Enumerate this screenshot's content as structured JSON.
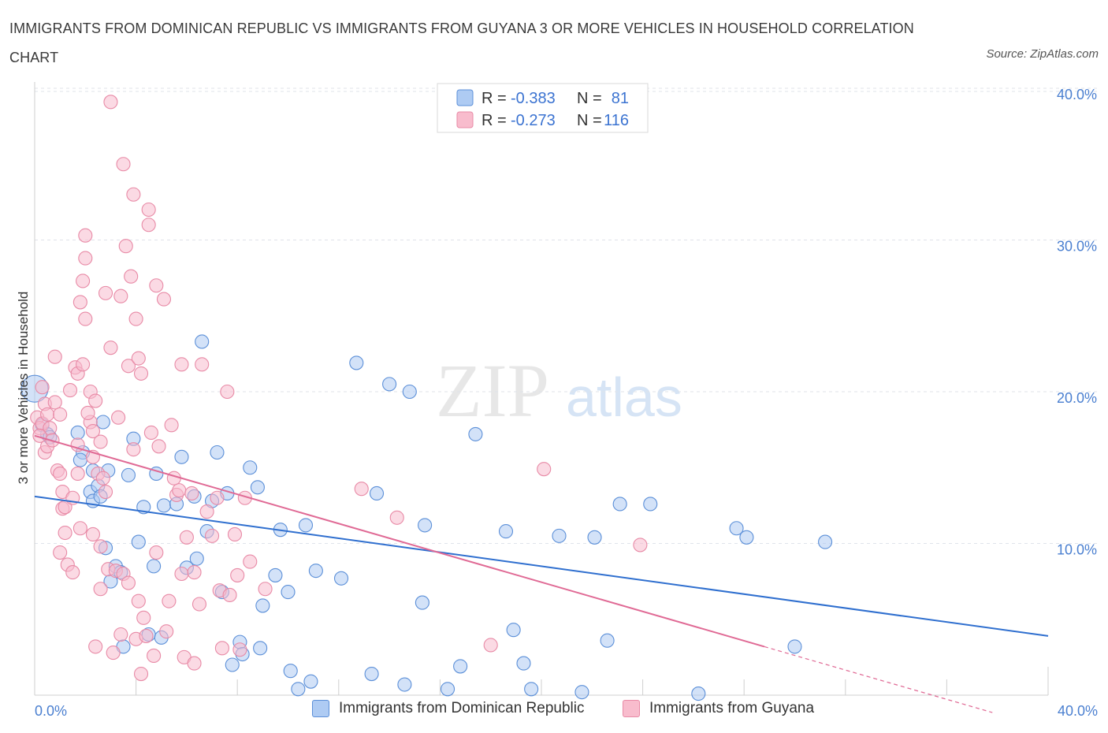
{
  "title": "IMMIGRANTS FROM DOMINICAN REPUBLIC VS IMMIGRANTS FROM GUYANA 3 OR MORE VEHICLES IN HOUSEHOLD CORRELATION CHART",
  "source": "Source: ZipAtlas.com",
  "watermark": {
    "zip": "ZIP",
    "atlas": "atlas"
  },
  "legend": {
    "r_label": "R =",
    "n_label": "N =",
    "rows": [
      {
        "r": "-0.383",
        "n": "81",
        "color": "#aecbf3"
      },
      {
        "r": "-0.273",
        "n": "116",
        "color": "#f8bccd"
      }
    ]
  },
  "colors": {
    "blue_fill": "#aecbf3",
    "blue_stroke": "#5b8fd8",
    "blue_line": "#2f6fcf",
    "pink_fill": "#f8bccd",
    "pink_stroke": "#e88aa6",
    "pink_line": "#e06a95",
    "tick_text": "#4a7fd0",
    "grid": "#dfe3ea"
  },
  "chart_data": {
    "type": "scatter",
    "title": "IMMIGRANTS FROM DOMINICAN REPUBLIC VS IMMIGRANTS FROM GUYANA 3 OR MORE VEHICLES IN HOUSEHOLD CORRELATION CHART",
    "xlabel": "",
    "ylabel": "3 or more Vehicles in Household",
    "xlim": [
      0,
      40
    ],
    "ylim": [
      0,
      40
    ],
    "x_ticks": [
      "0.0%",
      "40.0%"
    ],
    "y_ticks": [
      {
        "value": 10,
        "label": "10.0%"
      },
      {
        "value": 20,
        "label": "20.0%"
      },
      {
        "value": 30,
        "label": "30.0%"
      },
      {
        "value": 40,
        "label": "40.0%"
      }
    ],
    "grid": true,
    "legend_position": "top-center",
    "series": [
      {
        "name": "Immigrants from Dominican Republic",
        "r": -0.383,
        "n": 81,
        "trend": {
          "x": [
            0,
            40
          ],
          "y": [
            13.1,
            3.9
          ]
        },
        "points": [
          [
            0.0,
            20.2
          ],
          [
            0.3,
            17.8
          ],
          [
            0.5,
            17.2
          ],
          [
            0.6,
            17.0
          ],
          [
            1.7,
            17.3
          ],
          [
            1.9,
            16.0
          ],
          [
            1.8,
            15.5
          ],
          [
            2.3,
            14.8
          ],
          [
            2.2,
            13.4
          ],
          [
            2.3,
            12.8
          ],
          [
            2.5,
            13.8
          ],
          [
            2.6,
            13.1
          ],
          [
            2.7,
            18.0
          ],
          [
            2.8,
            9.7
          ],
          [
            2.9,
            14.8
          ],
          [
            3.0,
            7.5
          ],
          [
            3.2,
            8.5
          ],
          [
            3.4,
            8.1
          ],
          [
            3.5,
            3.2
          ],
          [
            3.7,
            14.5
          ],
          [
            3.9,
            16.9
          ],
          [
            4.1,
            10.1
          ],
          [
            4.3,
            12.4
          ],
          [
            4.5,
            4.0
          ],
          [
            4.7,
            8.5
          ],
          [
            4.8,
            14.6
          ],
          [
            5.0,
            3.8
          ],
          [
            5.1,
            12.5
          ],
          [
            5.6,
            12.6
          ],
          [
            5.8,
            15.7
          ],
          [
            6.0,
            8.4
          ],
          [
            6.3,
            13.1
          ],
          [
            6.4,
            9.0
          ],
          [
            6.6,
            23.3
          ],
          [
            6.8,
            10.8
          ],
          [
            7.0,
            12.8
          ],
          [
            7.2,
            16.0
          ],
          [
            7.4,
            6.8
          ],
          [
            7.6,
            13.3
          ],
          [
            7.8,
            2.0
          ],
          [
            8.1,
            3.5
          ],
          [
            8.2,
            2.7
          ],
          [
            8.5,
            15.0
          ],
          [
            8.8,
            13.7
          ],
          [
            8.9,
            3.1
          ],
          [
            9.0,
            5.9
          ],
          [
            9.5,
            7.9
          ],
          [
            9.7,
            10.9
          ],
          [
            10.0,
            6.8
          ],
          [
            10.1,
            1.6
          ],
          [
            10.4,
            0.4
          ],
          [
            10.7,
            11.2
          ],
          [
            10.9,
            0.9
          ],
          [
            11.1,
            8.2
          ],
          [
            12.1,
            7.7
          ],
          [
            12.7,
            21.9
          ],
          [
            13.3,
            1.4
          ],
          [
            13.5,
            13.3
          ],
          [
            14.0,
            20.5
          ],
          [
            14.6,
            0.7
          ],
          [
            14.8,
            20.0
          ],
          [
            15.3,
            6.1
          ],
          [
            15.4,
            11.2
          ],
          [
            16.3,
            0.4
          ],
          [
            16.8,
            1.9
          ],
          [
            17.4,
            17.2
          ],
          [
            18.6,
            10.8
          ],
          [
            18.9,
            4.3
          ],
          [
            19.3,
            2.1
          ],
          [
            19.6,
            0.4
          ],
          [
            20.7,
            10.5
          ],
          [
            21.6,
            0.2
          ],
          [
            22.1,
            10.4
          ],
          [
            22.6,
            3.6
          ],
          [
            23.1,
            12.6
          ],
          [
            24.3,
            12.6
          ],
          [
            26.2,
            0.1
          ],
          [
            27.7,
            11.0
          ],
          [
            28.1,
            10.4
          ],
          [
            30.0,
            3.2
          ],
          [
            31.2,
            10.1
          ]
        ]
      },
      {
        "name": "Immigrants from Guyana",
        "r": -0.273,
        "n": 116,
        "trend": {
          "x": [
            0,
            28.8
          ],
          "y": [
            17.1,
            3.2
          ]
        },
        "points": [
          [
            0.1,
            18.3
          ],
          [
            0.2,
            17.6
          ],
          [
            0.3,
            17.9
          ],
          [
            0.4,
            16.0
          ],
          [
            0.4,
            19.2
          ],
          [
            0.5,
            18.5
          ],
          [
            0.6,
            17.6
          ],
          [
            0.5,
            16.4
          ],
          [
            0.8,
            22.3
          ],
          [
            0.7,
            16.8
          ],
          [
            0.8,
            19.3
          ],
          [
            0.9,
            14.8
          ],
          [
            1.0,
            14.6
          ],
          [
            1.0,
            9.4
          ],
          [
            1.0,
            18.5
          ],
          [
            1.1,
            13.4
          ],
          [
            1.1,
            12.3
          ],
          [
            1.2,
            12.4
          ],
          [
            1.2,
            10.7
          ],
          [
            1.3,
            8.6
          ],
          [
            1.4,
            20.1
          ],
          [
            1.5,
            13.0
          ],
          [
            1.6,
            21.6
          ],
          [
            1.7,
            21.2
          ],
          [
            1.7,
            16.5
          ],
          [
            1.8,
            11.0
          ],
          [
            1.8,
            25.9
          ],
          [
            1.9,
            27.3
          ],
          [
            2.0,
            24.8
          ],
          [
            2.0,
            30.3
          ],
          [
            2.0,
            28.8
          ],
          [
            1.9,
            21.8
          ],
          [
            1.7,
            14.6
          ],
          [
            2.2,
            20.0
          ],
          [
            2.2,
            18.0
          ],
          [
            2.3,
            17.4
          ],
          [
            2.3,
            15.7
          ],
          [
            2.3,
            10.6
          ],
          [
            2.4,
            19.4
          ],
          [
            2.4,
            3.2
          ],
          [
            2.5,
            14.6
          ],
          [
            2.6,
            16.7
          ],
          [
            2.6,
            9.8
          ],
          [
            2.6,
            7.0
          ],
          [
            2.7,
            14.3
          ],
          [
            2.8,
            13.4
          ],
          [
            2.8,
            26.5
          ],
          [
            2.9,
            8.3
          ],
          [
            3.0,
            39.1
          ],
          [
            3.0,
            22.9
          ],
          [
            3.1,
            2.8
          ],
          [
            3.2,
            8.2
          ],
          [
            3.3,
            18.3
          ],
          [
            3.4,
            4.0
          ],
          [
            3.4,
            26.3
          ],
          [
            3.5,
            8.0
          ],
          [
            3.5,
            35.0
          ],
          [
            3.6,
            29.6
          ],
          [
            3.7,
            7.4
          ],
          [
            3.7,
            21.7
          ],
          [
            3.8,
            27.6
          ],
          [
            3.9,
            33.0
          ],
          [
            3.9,
            16.2
          ],
          [
            4.0,
            24.8
          ],
          [
            4.0,
            3.7
          ],
          [
            4.1,
            6.2
          ],
          [
            4.1,
            22.2
          ],
          [
            4.2,
            21.2
          ],
          [
            4.2,
            1.4
          ],
          [
            4.3,
            5.1
          ],
          [
            4.4,
            3.9
          ],
          [
            4.5,
            32.0
          ],
          [
            4.5,
            31.0
          ],
          [
            4.6,
            17.3
          ],
          [
            4.7,
            2.6
          ],
          [
            4.8,
            27.0
          ],
          [
            4.8,
            9.4
          ],
          [
            4.9,
            16.4
          ],
          [
            5.1,
            26.1
          ],
          [
            5.2,
            4.2
          ],
          [
            5.3,
            6.2
          ],
          [
            5.4,
            17.8
          ],
          [
            5.5,
            14.3
          ],
          [
            5.6,
            13.2
          ],
          [
            5.7,
            13.5
          ],
          [
            5.8,
            21.8
          ],
          [
            5.8,
            8.0
          ],
          [
            5.9,
            2.5
          ],
          [
            6.0,
            10.4
          ],
          [
            6.2,
            13.3
          ],
          [
            6.3,
            2.1
          ],
          [
            6.3,
            8.1
          ],
          [
            6.5,
            6.0
          ],
          [
            6.6,
            21.8
          ],
          [
            6.8,
            12.1
          ],
          [
            7.0,
            10.5
          ],
          [
            7.2,
            13.0
          ],
          [
            7.3,
            6.9
          ],
          [
            7.4,
            3.1
          ],
          [
            7.6,
            20.0
          ],
          [
            7.7,
            6.6
          ],
          [
            7.9,
            10.6
          ],
          [
            8.0,
            7.9
          ],
          [
            8.1,
            3.0
          ],
          [
            8.3,
            13.0
          ],
          [
            8.5,
            8.8
          ],
          [
            9.1,
            7.0
          ],
          [
            12.9,
            13.6
          ],
          [
            14.3,
            11.7
          ],
          [
            18.0,
            3.3
          ],
          [
            20.1,
            14.9
          ],
          [
            23.9,
            9.9
          ],
          [
            2.1,
            18.6
          ],
          [
            0.3,
            20.3
          ],
          [
            0.2,
            17.1
          ],
          [
            1.5,
            8.1
          ]
        ]
      }
    ]
  },
  "bottom_legend": [
    {
      "label": "Immigrants from Dominican Republic",
      "color": "#aecbf3"
    },
    {
      "label": "Immigrants from Guyana",
      "color": "#f8bccd"
    }
  ]
}
